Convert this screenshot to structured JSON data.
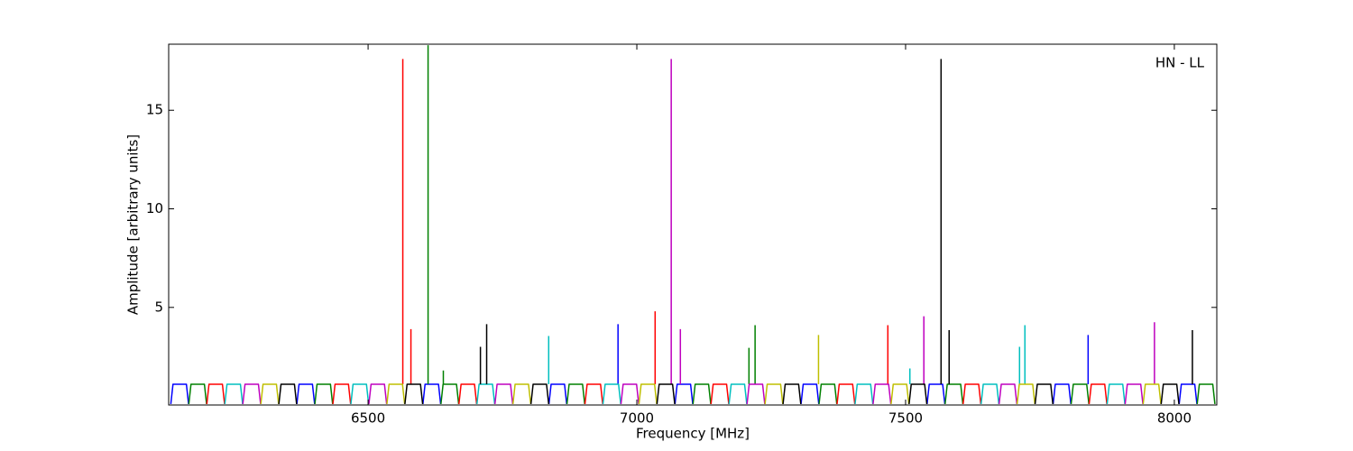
{
  "chart_data": {
    "type": "line",
    "annotation": "HN - LL",
    "x_label": "Frequency [MHz]",
    "y_label": "Amplitude [arbitrary units]",
    "xlim": [
      6129,
      8079
    ],
    "ylim": [
      0.05,
      18.35
    ],
    "xticks": [
      6500,
      7000,
      7500,
      8000
    ],
    "yticks": [
      5,
      10,
      15
    ],
    "series": [
      {
        "color": "#0000ff",
        "x": [
          6133,
          6137,
          6162,
          6166,
          6166,
          6367.5,
          6371.5,
          6396.5,
          6400.5,
          6400.5,
          6602,
          6606,
          6631,
          6635,
          6635,
          6836.5,
          6840.5,
          6865.5,
          6869.5,
          6869.5,
          7071,
          7075,
          7100,
          7104,
          7104,
          7305.5,
          7309.5,
          7334.5,
          7338.5,
          7338.5,
          7540,
          7544,
          7569,
          7573,
          7573,
          7774.5,
          7778.5,
          7803.5,
          7807.5,
          7807.5,
          8009,
          8013,
          8038,
          8042,
          8042,
          6965,
          6965,
          6965,
          7839.6,
          7839.6
        ],
        "values": [
          0.1,
          1.1,
          1.1,
          0.1,
          null,
          0.1,
          1.1,
          1.1,
          0.1,
          null,
          0.1,
          1.1,
          1.1,
          0.1,
          null,
          0.1,
          1.1,
          1.1,
          0.1,
          null,
          0.1,
          1.1,
          1.1,
          0.1,
          null,
          0.1,
          1.1,
          1.1,
          0.1,
          null,
          0.1,
          1.1,
          1.1,
          0.1,
          null,
          0.1,
          1.1,
          1.1,
          0.1,
          null,
          0.1,
          1.1,
          1.1,
          0.1,
          null,
          1.1,
          4.15,
          null,
          1.1,
          3.6
        ]
      },
      {
        "color": "#008000",
        "x": [
          6166.5,
          6170.5,
          6195.5,
          6199.5,
          6199.5,
          6401,
          6405,
          6430,
          6434,
          6434,
          6635.5,
          6639.5,
          6664.5,
          6668.5,
          6668.5,
          6870,
          6874,
          6899,
          6903,
          6903,
          7104.5,
          7108.5,
          7133.5,
          7137.5,
          7137.5,
          7339,
          7343,
          7368,
          7372,
          7372,
          7573.5,
          7577.5,
          7602.5,
          7606.5,
          7606.5,
          7808,
          7812,
          7837,
          7841,
          7841,
          8042.5,
          8046.5,
          8071.5,
          8075.5,
          8075.5,
          6611.6,
          6611.6,
          6611.6,
          6640,
          6640,
          6640,
          7208.6,
          7208.6,
          7208.6,
          7220,
          7220
        ],
        "values": [
          0.1,
          1.1,
          1.1,
          0.1,
          null,
          0.1,
          1.1,
          1.1,
          0.1,
          null,
          0.1,
          1.1,
          1.1,
          0.1,
          null,
          0.1,
          1.1,
          1.1,
          0.1,
          null,
          0.1,
          1.1,
          1.1,
          0.1,
          null,
          0.1,
          1.1,
          1.1,
          0.1,
          null,
          0.1,
          1.1,
          1.1,
          0.1,
          null,
          0.1,
          1.1,
          1.1,
          0.1,
          null,
          0.1,
          1.1,
          1.1,
          0.1,
          null,
          1.1,
          18.3,
          null,
          1.1,
          1.8,
          null,
          1.1,
          2.95,
          null,
          1.1,
          4.1
        ]
      },
      {
        "color": "#ff0000",
        "x": [
          6200,
          6204,
          6229,
          6233,
          6233,
          6434.5,
          6438.5,
          6463.5,
          6467.5,
          6467.5,
          6669,
          6673,
          6698,
          6702,
          6702,
          6903.5,
          6907.5,
          6932.5,
          6936.5,
          6936.5,
          7138,
          7142,
          7167,
          7171,
          7171,
          7372.5,
          7376.5,
          7401.5,
          7405.5,
          7405.5,
          7607,
          7611,
          7636,
          7640,
          7640,
          7841.5,
          7845.5,
          7870.5,
          7874.5,
          7874.5,
          6564.6,
          6564.6,
          6564.6,
          6579.7,
          6579.7,
          6579.7,
          7034,
          7034,
          7034,
          7467,
          7467
        ],
        "values": [
          0.1,
          1.1,
          1.1,
          0.1,
          null,
          0.1,
          1.1,
          1.1,
          0.1,
          null,
          0.1,
          1.1,
          1.1,
          0.1,
          null,
          0.1,
          1.1,
          1.1,
          0.1,
          null,
          0.1,
          1.1,
          1.1,
          0.1,
          null,
          0.1,
          1.1,
          1.1,
          0.1,
          null,
          0.1,
          1.1,
          1.1,
          0.1,
          null,
          0.1,
          1.1,
          1.1,
          0.1,
          null,
          1.1,
          17.6,
          null,
          1.1,
          3.9,
          null,
          1.1,
          4.8,
          null,
          1.1,
          4.1
        ]
      },
      {
        "color": "#00bfbf",
        "x": [
          6233.5,
          6237.5,
          6262.5,
          6266.5,
          6266.5,
          6468,
          6472,
          6497,
          6501,
          6501,
          6702.5,
          6706.5,
          6731.5,
          6735.5,
          6735.5,
          6937,
          6941,
          6966,
          6970,
          6970,
          7171.5,
          7175.5,
          7200.5,
          7204.5,
          7204.5,
          7406,
          7410,
          7435,
          7439,
          7439,
          7640.5,
          7644.5,
          7669.5,
          7673.5,
          7673.5,
          7875,
          7879,
          7904,
          7908,
          7908,
          6836,
          6836,
          6836,
          7508,
          7508,
          7508,
          7712,
          7712,
          7712,
          7722,
          7722
        ],
        "values": [
          0.1,
          1.1,
          1.1,
          0.1,
          null,
          0.1,
          1.1,
          1.1,
          0.1,
          null,
          0.1,
          1.1,
          1.1,
          0.1,
          null,
          0.1,
          1.1,
          1.1,
          0.1,
          null,
          0.1,
          1.1,
          1.1,
          0.1,
          null,
          0.1,
          1.1,
          1.1,
          0.1,
          null,
          0.1,
          1.1,
          1.1,
          0.1,
          null,
          0.1,
          1.1,
          1.1,
          0.1,
          null,
          1.1,
          3.55,
          null,
          1.1,
          1.9,
          null,
          1.1,
          3.0,
          null,
          1.1,
          4.1
        ]
      },
      {
        "color": "#bf00bf",
        "x": [
          6267,
          6271,
          6296,
          6300,
          6300,
          6501.5,
          6505.5,
          6530.5,
          6534.5,
          6534.5,
          6736,
          6740,
          6765,
          6769,
          6769,
          6970.5,
          6974.5,
          6999.5,
          7003.5,
          7003.5,
          7205,
          7209,
          7234,
          7238,
          7238,
          7439.5,
          7443.5,
          7468.5,
          7472.5,
          7472.5,
          7674,
          7678,
          7703,
          7707,
          7707,
          7908.5,
          7912.5,
          7937.5,
          7941.5,
          7941.5,
          7064,
          7064,
          7064,
          7081,
          7081,
          7081,
          7534,
          7534,
          7534,
          7963,
          7963
        ],
        "values": [
          0.1,
          1.1,
          1.1,
          0.1,
          null,
          0.1,
          1.1,
          1.1,
          0.1,
          null,
          0.1,
          1.1,
          1.1,
          0.1,
          null,
          0.1,
          1.1,
          1.1,
          0.1,
          null,
          0.1,
          1.1,
          1.1,
          0.1,
          null,
          0.1,
          1.1,
          1.1,
          0.1,
          null,
          0.1,
          1.1,
          1.1,
          0.1,
          null,
          0.1,
          1.1,
          1.1,
          0.1,
          null,
          1.1,
          17.6,
          null,
          1.1,
          3.9,
          null,
          1.1,
          4.55,
          null,
          1.1,
          4.25
        ]
      },
      {
        "color": "#bfbf00",
        "x": [
          6300.5,
          6304.5,
          6329.5,
          6333.5,
          6333.5,
          6535,
          6539,
          6564,
          6568,
          6568,
          6769.5,
          6773.5,
          6798.5,
          6802.5,
          6802.5,
          7004,
          7008,
          7033,
          7037,
          7037,
          7238.5,
          7242.5,
          7267.5,
          7271.5,
          7271.5,
          7473,
          7477,
          7502,
          7506,
          7506,
          7707.5,
          7711.5,
          7736.5,
          7740.5,
          7740.5,
          7942,
          7946,
          7971,
          7975,
          7975,
          7338,
          7338
        ],
        "values": [
          0.1,
          1.1,
          1.1,
          0.1,
          null,
          0.1,
          1.1,
          1.1,
          0.1,
          null,
          0.1,
          1.1,
          1.1,
          0.1,
          null,
          0.1,
          1.1,
          1.1,
          0.1,
          null,
          0.1,
          1.1,
          1.1,
          0.1,
          null,
          0.1,
          1.1,
          1.1,
          0.1,
          null,
          0.1,
          1.1,
          1.1,
          0.1,
          null,
          0.1,
          1.1,
          1.1,
          0.1,
          null,
          1.1,
          3.6
        ]
      },
      {
        "color": "#000000",
        "x": [
          6334,
          6338,
          6363,
          6367,
          6367,
          6568.5,
          6572.5,
          6597.5,
          6601.5,
          6601.5,
          6803,
          6807,
          6832,
          6836,
          6836,
          7037.5,
          7041.5,
          7066.5,
          7070.5,
          7070.5,
          7272,
          7276,
          7301,
          7305,
          7305,
          7506.5,
          7510.5,
          7535.5,
          7539.5,
          7539.5,
          7741,
          7745,
          7770,
          7774,
          7774,
          7975.5,
          7979.5,
          8004.5,
          8008.5,
          8008.5,
          6709,
          6709,
          6709,
          6720.6,
          6720.6,
          6720.6,
          7566,
          7566,
          7566,
          7581,
          7581,
          7581,
          8033.6,
          8033.6
        ],
        "values": [
          0.1,
          1.1,
          1.1,
          0.1,
          null,
          0.1,
          1.1,
          1.1,
          0.1,
          null,
          0.1,
          1.1,
          1.1,
          0.1,
          null,
          0.1,
          1.1,
          1.1,
          0.1,
          null,
          0.1,
          1.1,
          1.1,
          0.1,
          null,
          0.1,
          1.1,
          1.1,
          0.1,
          null,
          0.1,
          1.1,
          1.1,
          0.1,
          null,
          0.1,
          1.1,
          1.1,
          0.1,
          null,
          1.1,
          3.0,
          null,
          1.1,
          4.15,
          null,
          1.1,
          17.6,
          null,
          1.1,
          3.85,
          null,
          1.1,
          3.85
        ]
      }
    ]
  }
}
